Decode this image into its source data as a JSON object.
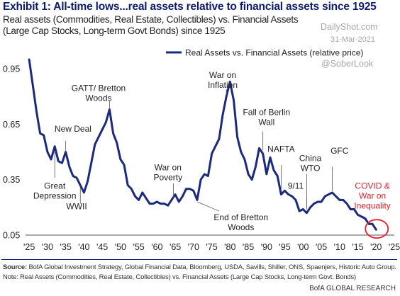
{
  "header": {
    "exhibit_label": "Exhibit 1:",
    "title": "All-time lows...real assets relative to financial assets since 1925",
    "subtitle": "Real assets (Commodities, Real Estate, Collectibles) vs. Financial Assets (Large Cap Stocks, Long-term Govt Bonds) since 1925"
  },
  "watermark": {
    "site": "DailyShot.com",
    "date": "31-Mar-2021",
    "handle": "@SoberLook"
  },
  "footer": {
    "source_label": "Source:",
    "source_text": "BofA Global Investment Strategy, Global Financial Data, Bloomberg, USDA, Savills, Shiller, ONS, Spaenjers, Historic Auto Group.",
    "note_text": "Note: Real Assets (Commodities, Real Estate, Collectibles) vs. Financial Assets (Large Cap Stocks, Long-term Govt. Bonds)",
    "brand": "BofA GLOBAL RESEARCH"
  },
  "chart_data": {
    "type": "line",
    "xlim": [
      1924,
      2025
    ],
    "ylim": [
      0.05,
      1.0
    ],
    "x_ticks": [
      1925,
      1930,
      1935,
      1940,
      1945,
      1950,
      1955,
      1960,
      1965,
      1970,
      1975,
      1980,
      1985,
      1990,
      1995,
      2000,
      2005,
      2010,
      2015,
      2020,
      2025
    ],
    "x_tick_labels": [
      "'25",
      "'30",
      "'35",
      "'40",
      "'45",
      "'50",
      "'55",
      "'60",
      "'65",
      "'70",
      "'75",
      "'80",
      "'85",
      "'90",
      "'95",
      "'00",
      "'05",
      "'10",
      "'15",
      "'20",
      "'25"
    ],
    "y_ticks": [
      0.05,
      0.35,
      0.65,
      0.95
    ],
    "y_tick_labels": [
      "0.05",
      "0.35",
      "0.65",
      "0.95"
    ],
    "grid": false,
    "legend_position": "top-center",
    "line_color": "#1b2a7c",
    "series": [
      {
        "name": "Real Assets vs. Financial Assets (relative price)",
        "x": [
          1925,
          1926,
          1927,
          1928,
          1929,
          1930,
          1931,
          1932,
          1933,
          1934,
          1935,
          1936,
          1937,
          1938,
          1939,
          1940,
          1941,
          1942,
          1943,
          1944,
          1945,
          1946,
          1947,
          1948,
          1949,
          1950,
          1951,
          1952,
          1953,
          1954,
          1955,
          1956,
          1957,
          1958,
          1959,
          1960,
          1961,
          1962,
          1963,
          1964,
          1965,
          1966,
          1967,
          1968,
          1969,
          1970,
          1971,
          1972,
          1973,
          1974,
          1975,
          1976,
          1977,
          1978,
          1979,
          1980,
          1981,
          1982,
          1983,
          1984,
          1985,
          1986,
          1987,
          1988,
          1989,
          1990,
          1991,
          1992,
          1993,
          1994,
          1995,
          1996,
          1997,
          1998,
          1999,
          2000,
          2001,
          2002,
          2003,
          2004,
          2005,
          2006,
          2007,
          2008,
          2009,
          2010,
          2011,
          2012,
          2013,
          2014,
          2015,
          2016,
          2017,
          2018,
          2019,
          2020
        ],
        "values": [
          1.0,
          0.86,
          0.72,
          0.6,
          0.59,
          0.5,
          0.46,
          0.53,
          0.45,
          0.44,
          0.5,
          0.42,
          0.37,
          0.36,
          0.32,
          0.28,
          0.34,
          0.44,
          0.54,
          0.58,
          0.62,
          0.66,
          0.73,
          0.6,
          0.55,
          0.46,
          0.43,
          0.32,
          0.3,
          0.26,
          0.24,
          0.28,
          0.25,
          0.22,
          0.22,
          0.23,
          0.22,
          0.22,
          0.21,
          0.24,
          0.27,
          0.23,
          0.26,
          0.3,
          0.3,
          0.29,
          0.24,
          0.35,
          0.38,
          0.37,
          0.49,
          0.53,
          0.57,
          0.7,
          0.8,
          0.88,
          0.78,
          0.58,
          0.5,
          0.46,
          0.38,
          0.35,
          0.42,
          0.52,
          0.49,
          0.38,
          0.47,
          0.4,
          0.37,
          0.27,
          0.29,
          0.27,
          0.26,
          0.24,
          0.18,
          0.19,
          0.17,
          0.2,
          0.22,
          0.23,
          0.23,
          0.26,
          0.27,
          0.28,
          0.26,
          0.24,
          0.24,
          0.22,
          0.19,
          0.19,
          0.16,
          0.15,
          0.14,
          0.11,
          0.11,
          0.08
        ]
      }
    ],
    "annotations": [
      {
        "text": "Great Depression",
        "x": 1932,
        "y": 0.3,
        "color": "#1f1f1f"
      },
      {
        "text": "New Deal",
        "x": 1937,
        "y": 0.61,
        "color": "#1f1f1f"
      },
      {
        "text": "WWII",
        "x": 1938,
        "y": 0.19,
        "color": "#1f1f1f"
      },
      {
        "text": "GATT/ Bretton Woods",
        "x": 1944,
        "y": 0.83,
        "color": "#1f1f1f"
      },
      {
        "text": "War on Poverty",
        "x": 1963,
        "y": 0.4,
        "color": "#1f1f1f"
      },
      {
        "text": "War on Inflation",
        "x": 1978,
        "y": 0.9,
        "color": "#1f1f1f"
      },
      {
        "text": "End of Bretton Woods",
        "x": 1983,
        "y": 0.13,
        "color": "#1f1f1f"
      },
      {
        "text": "Fall of Berlin Wall",
        "x": 1990,
        "y": 0.7,
        "color": "#1f1f1f"
      },
      {
        "text": "NAFTA",
        "x": 1994,
        "y": 0.5,
        "color": "#1f1f1f"
      },
      {
        "text": "9/11",
        "x": 1998,
        "y": 0.3,
        "color": "#1f1f1f"
      },
      {
        "text": "China WTO",
        "x": 2002,
        "y": 0.45,
        "color": "#1f1f1f"
      },
      {
        "text": "GFC",
        "x": 2010,
        "y": 0.49,
        "color": "#1f1f1f"
      },
      {
        "text": "COVID & War on Inequality",
        "x": 2019,
        "y": 0.3,
        "color": "#e8202a"
      }
    ]
  }
}
